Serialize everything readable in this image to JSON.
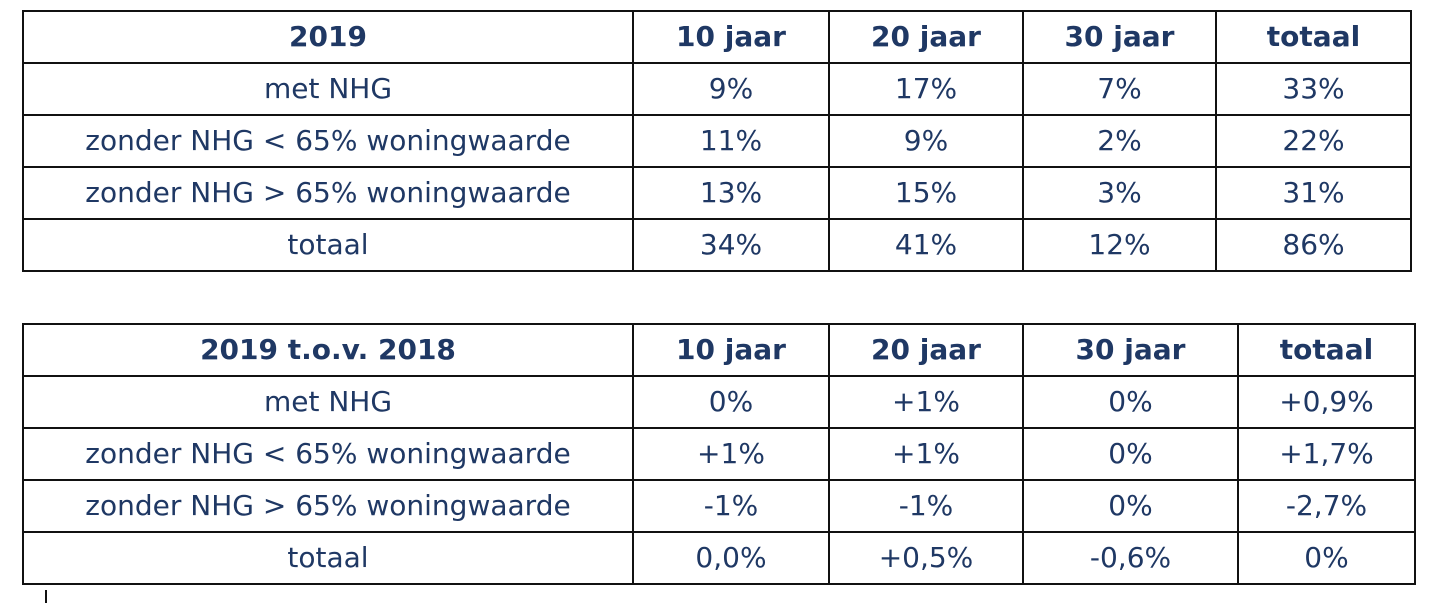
{
  "tables": [
    {
      "header": [
        "2019",
        "10 jaar",
        "20 jaar",
        "30 jaar",
        "totaal"
      ],
      "rows": [
        [
          "met NHG",
          "9%",
          "17%",
          "7%",
          "33%"
        ],
        [
          "zonder NHG < 65% woningwaarde",
          "11%",
          "9%",
          "2%",
          "22%"
        ],
        [
          "zonder NHG > 65% woningwaarde",
          "13%",
          "15%",
          "3%",
          "31%"
        ],
        [
          "totaal",
          "34%",
          "41%",
          "12%",
          "86%"
        ]
      ]
    },
    {
      "header": [
        "2019 t.o.v. 2018",
        "10 jaar",
        "20 jaar",
        "30 jaar",
        "totaal"
      ],
      "rows": [
        [
          "met NHG",
          "0%",
          "+1%",
          "0%",
          "+0,9%"
        ],
        [
          "zonder NHG < 65% woningwaarde",
          "+1%",
          "+1%",
          "0%",
          "+1,7%"
        ],
        [
          "zonder NHG > 65% woningwaarde",
          "-1%",
          "-1%",
          "0%",
          "-2,7%"
        ],
        [
          "totaal",
          "0,0%",
          "+0,5%",
          "-0,6%",
          "0%"
        ]
      ]
    }
  ]
}
